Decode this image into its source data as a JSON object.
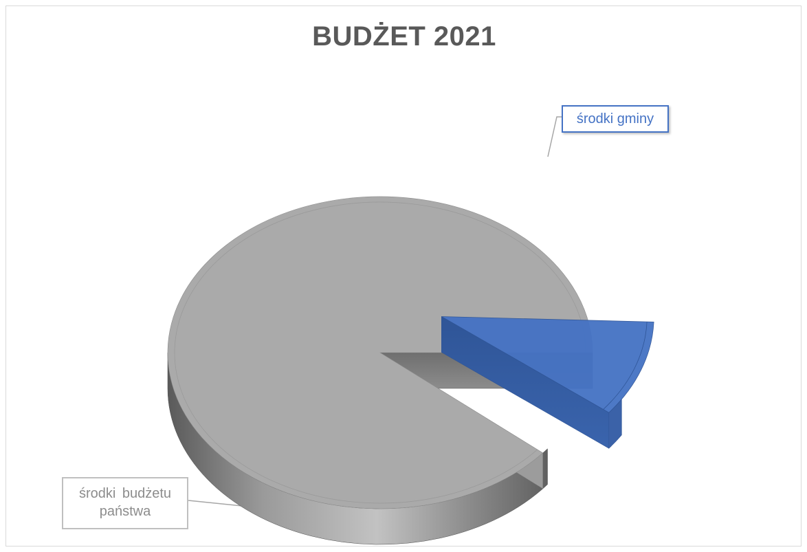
{
  "chart_data": {
    "type": "pie",
    "style": "3d-exploded",
    "title": "BUDŻET 2021",
    "slices": [
      {
        "label": "środki budżetu państwa",
        "value": 90,
        "color": "#a6a6a6"
      },
      {
        "label": "środki gminy",
        "value": 10,
        "color": "#4472c4"
      }
    ],
    "legend": "none",
    "data_labels": "outside-with-leader-lines"
  }
}
